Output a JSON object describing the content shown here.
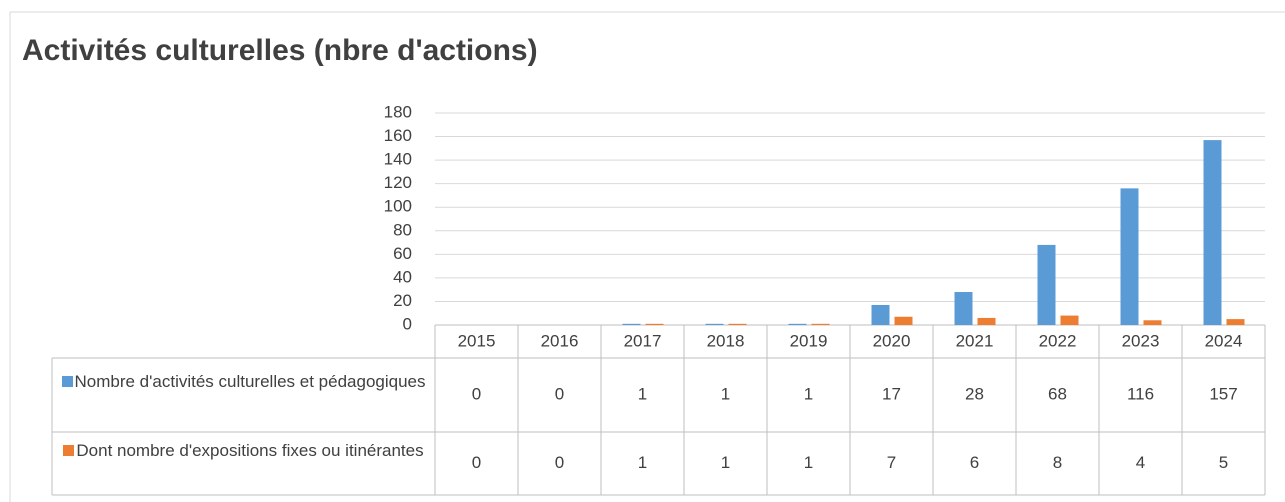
{
  "chart_data": {
    "type": "bar",
    "title": "Activités culturelles (nbre d'actions)",
    "categories": [
      "2015",
      "2016",
      "2017",
      "2018",
      "2019",
      "2020",
      "2021",
      "2022",
      "2023",
      "2024"
    ],
    "series": [
      {
        "name": "Nombre d'activités culturelles et pédagogiques",
        "color": "#5b9bd5",
        "values": [
          0,
          0,
          1,
          1,
          1,
          17,
          28,
          68,
          116,
          157
        ]
      },
      {
        "name": "Dont nombre d'expositions fixes ou itinérantes",
        "color": "#ed7d31",
        "values": [
          0,
          0,
          1,
          1,
          1,
          7,
          6,
          8,
          4,
          5
        ]
      }
    ],
    "ylim": [
      0,
      180
    ],
    "yticks": [
      0,
      20,
      40,
      60,
      80,
      100,
      120,
      140,
      160,
      180
    ],
    "grid": true
  }
}
